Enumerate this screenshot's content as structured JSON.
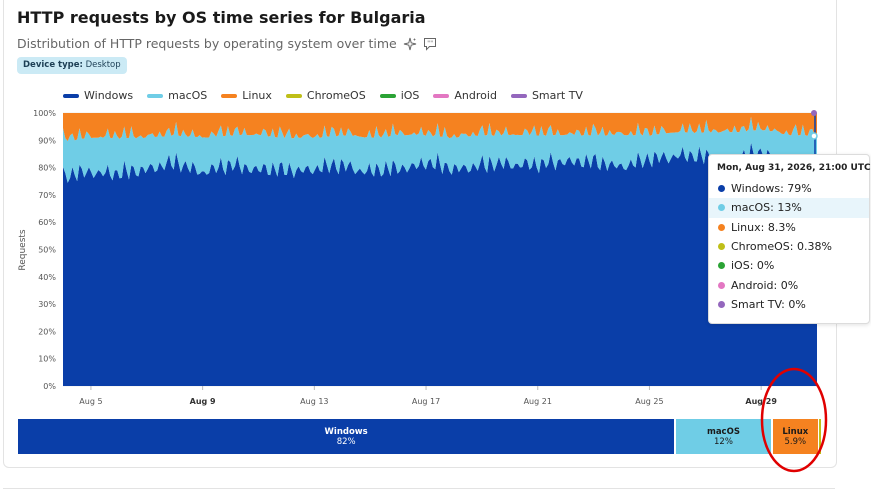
{
  "header": {
    "title": "HTTP requests by OS time series for Bulgaria",
    "subtitle": "Distribution of HTTP requests by operating system over time",
    "badge_key": "Device type:",
    "badge_value": "Desktop"
  },
  "colors": {
    "Windows": "#0a3ea8",
    "macOS": "#6fcde6",
    "Linux": "#f58220",
    "ChromeOS": "#bfbf18",
    "iOS": "#2ba335",
    "Android": "#e377c2",
    "Smart TV": "#9467bd"
  },
  "tooltip": {
    "time": "Mon, Aug 31, 2026, 21:00 UTC",
    "rows": [
      {
        "key": "Windows",
        "text": "Windows: 79%"
      },
      {
        "key": "macOS",
        "text": "macOS: 13%"
      },
      {
        "key": "Linux",
        "text": "Linux: 8.3%"
      },
      {
        "key": "ChromeOS",
        "text": "ChromeOS: 0.38%"
      },
      {
        "key": "iOS",
        "text": "iOS: 0%"
      },
      {
        "key": "Android",
        "text": "Android: 0%"
      },
      {
        "key": "Smart TV",
        "text": "Smart TV: 0%"
      }
    ]
  },
  "share_bar": [
    {
      "name": "Windows",
      "pct": "82%",
      "value": 82
    },
    {
      "name": "macOS",
      "pct": "12%",
      "value": 12
    },
    {
      "name": "Linux",
      "pct": "5.9%",
      "value": 5.9
    }
  ],
  "chart_data": {
    "type": "area",
    "stacked": true,
    "title": "HTTP requests by OS time series for Bulgaria",
    "ylabel": "Requests",
    "ylim": [
      0,
      100
    ],
    "yticks": [
      "0%",
      "10%",
      "20%",
      "30%",
      "40%",
      "50%",
      "60%",
      "70%",
      "80%",
      "90%",
      "100%"
    ],
    "xticks": [
      {
        "label": "Aug 5",
        "bold": false
      },
      {
        "label": "Aug 9",
        "bold": true
      },
      {
        "label": "Aug 13",
        "bold": false
      },
      {
        "label": "Aug 17",
        "bold": false
      },
      {
        "label": "Aug 21",
        "bold": false
      },
      {
        "label": "Aug 25",
        "bold": false
      },
      {
        "label": "Aug 29",
        "bold": true
      }
    ],
    "x": [
      "Aug 4",
      "Aug 5",
      "Aug 6",
      "Aug 7",
      "Aug 8",
      "Aug 9",
      "Aug 10",
      "Aug 11",
      "Aug 12",
      "Aug 13",
      "Aug 14",
      "Aug 15",
      "Aug 16",
      "Aug 17",
      "Aug 18",
      "Aug 19",
      "Aug 20",
      "Aug 21",
      "Aug 22",
      "Aug 23",
      "Aug 24",
      "Aug 25",
      "Aug 26",
      "Aug 27",
      "Aug 28",
      "Aug 29",
      "Aug 30",
      "Aug 31"
    ],
    "series": [
      {
        "name": "Windows",
        "values": [
          76,
          78,
          77,
          79,
          81,
          78,
          80,
          79,
          78,
          79,
          80,
          78,
          79,
          81,
          79,
          80,
          81,
          80,
          82,
          81,
          80,
          82,
          84,
          83,
          82,
          85,
          80,
          79
        ]
      },
      {
        "name": "macOS",
        "values": [
          14,
          13,
          14,
          12,
          11,
          13,
          12,
          13,
          13,
          12,
          12,
          13,
          13,
          11,
          12,
          12,
          11,
          12,
          10,
          11,
          12,
          10,
          9,
          10,
          11,
          9,
          12,
          13
        ]
      },
      {
        "name": "Linux",
        "values": [
          10,
          9,
          9,
          9,
          8,
          9,
          8,
          8,
          9,
          9,
          8,
          9,
          8,
          8,
          9,
          8,
          8,
          8,
          8,
          8,
          8,
          8,
          7,
          7,
          7,
          6,
          8,
          8
        ]
      },
      {
        "name": "ChromeOS",
        "values": [
          0,
          0,
          0,
          0,
          0,
          0,
          0,
          0,
          0,
          0,
          0,
          0,
          0,
          0,
          0,
          0,
          0,
          0,
          0,
          0,
          0,
          0,
          0,
          0,
          0,
          0,
          0,
          0
        ]
      },
      {
        "name": "iOS",
        "values": [
          0,
          0,
          0,
          0,
          0,
          0,
          0,
          0,
          0,
          0,
          0,
          0,
          0,
          0,
          0,
          0,
          0,
          0,
          0,
          0,
          0,
          0,
          0,
          0,
          0,
          0,
          0,
          0
        ]
      },
      {
        "name": "Android",
        "values": [
          0,
          0,
          0,
          0,
          0,
          0,
          0,
          0,
          0,
          0,
          0,
          0,
          0,
          0,
          0,
          0,
          0,
          0,
          0,
          0,
          0,
          0,
          0,
          0,
          0,
          0,
          0,
          0
        ]
      },
      {
        "name": "Smart TV",
        "values": [
          0,
          0,
          0,
          0,
          0,
          0,
          0,
          0,
          0,
          0,
          0,
          0,
          0,
          0,
          0,
          0,
          0,
          0,
          0,
          0,
          0,
          0,
          0,
          0,
          0,
          0,
          0,
          0
        ]
      }
    ]
  }
}
